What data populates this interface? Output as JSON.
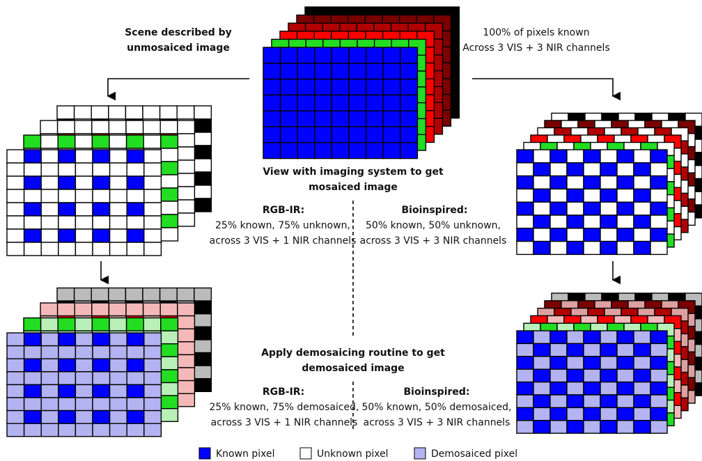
{
  "top_left": {
    "lines": [
      "Scene described by",
      "unmosaiced image"
    ]
  },
  "top_right": {
    "lines": [
      "100% of pixels known",
      "Across 3 VIS + 3 NIR channels"
    ]
  },
  "mosaic_step": {
    "lines": [
      "View with imaging system to get",
      "mosaiced image"
    ]
  },
  "mosaic_rgbir": {
    "title": "RGB-IR:",
    "lines": [
      "25% known, 75% unknown,",
      "across 3 VIS + 1 NIR channels"
    ]
  },
  "mosaic_bio": {
    "title": "Bioinspired:",
    "lines": [
      "50% known, 50% unknown,",
      "across 3 VIS + 3 NIR channels"
    ]
  },
  "demosaic_step": {
    "lines": [
      "Apply demosaicing routine to get",
      "demosaiced image"
    ]
  },
  "demosaic_rgbir": {
    "title": "RGB-IR:",
    "lines": [
      "25% known, 75% demosaiced,",
      "across 3 VIS + 1 NIR channels"
    ]
  },
  "demosaic_bio": {
    "title": "Bioinspired:",
    "lines": [
      "50% known, 50% demosaiced,",
      "across 3 VIS + 3 NIR channels"
    ]
  },
  "legend": [
    "Known pixel",
    "Unknown pixel",
    "Demosaiced pixel"
  ]
}
